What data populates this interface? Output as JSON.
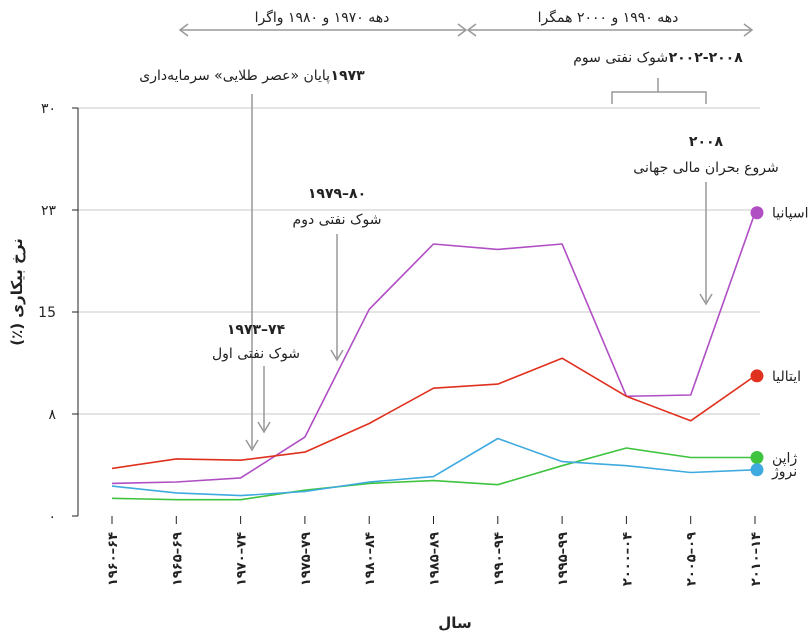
{
  "chart_data": {
    "type": "line",
    "xlabel": "سال",
    "ylabel": "نرخ بیکاری (٪)",
    "ylim": [
      0,
      30
    ],
    "yticks": [
      {
        "value": 0,
        "label": "۰"
      },
      {
        "value": 7.5,
        "label": "۸"
      },
      {
        "value": 15,
        "label": "15"
      },
      {
        "value": 22.5,
        "label": "۲۳"
      },
      {
        "value": 30,
        "label": "۳۰"
      }
    ],
    "grid": "horizontal",
    "categories": [
      "۱۹۶۰–۶۴",
      "۱۹۶۵–۶۹",
      "۱۹۷۰–۷۴",
      "۱۹۷۵–۷۹",
      "۱۹۸۰–۸۴",
      "۱۹۸۵–۸۹",
      "۱۹۹۰–۹۴",
      "۱۹۹۵–۹۹",
      "۲۰۰۰–۰۴",
      "۲۰۰۵–۰۹",
      "۲۰۱۰–۱۴"
    ],
    "series": [
      {
        "name": "اسپانیا",
        "color": "#b04ec4",
        "values": [
          2.4,
          2.5,
          2.8,
          5.8,
          15.2,
          20.0,
          19.6,
          20.0,
          8.8,
          8.9,
          22.3
        ]
      },
      {
        "name": "ایتالیا",
        "color": "#e0301e",
        "values": [
          3.5,
          4.2,
          4.1,
          4.7,
          6.8,
          9.4,
          9.7,
          11.6,
          8.8,
          7.0,
          10.3
        ]
      },
      {
        "name": "ژاپن",
        "color": "#3ec43e",
        "values": [
          1.3,
          1.2,
          1.2,
          1.9,
          2.4,
          2.6,
          2.3,
          3.7,
          5.0,
          4.3,
          4.3
        ]
      },
      {
        "name": "نروژ",
        "color": "#3faadf",
        "values": [
          2.2,
          1.7,
          1.5,
          1.8,
          2.5,
          2.9,
          5.7,
          4.0,
          3.7,
          3.2,
          3.4
        ]
      }
    ],
    "annotations": {
      "period_1": "دهه ۱۹۷۰ و ۱۹۸۰ واگرا",
      "period_2": "دهه ۱۹۹۰ و ۲۰۰۰ همگرا",
      "golden_age_year": "۱۹۷۳",
      "golden_age_text": "پایان «عصر طلایی» سرمایه‌داری",
      "oil_shock_3_years": "۲۰۰۲-۲۰۰۸",
      "oil_shock_3_text": "شوک نفتی سوم",
      "crisis_year": "۲۰۰۸",
      "crisis_text": "شروع بحران مالی جهانی",
      "oil_shock_2_years": "۱۹۷۹–۸۰",
      "oil_shock_2_text": "شوک نفتی دوم",
      "oil_shock_1_years": "۱۹۷۳–۷۴",
      "oil_shock_1_text": "شوک نفتی اول"
    }
  }
}
